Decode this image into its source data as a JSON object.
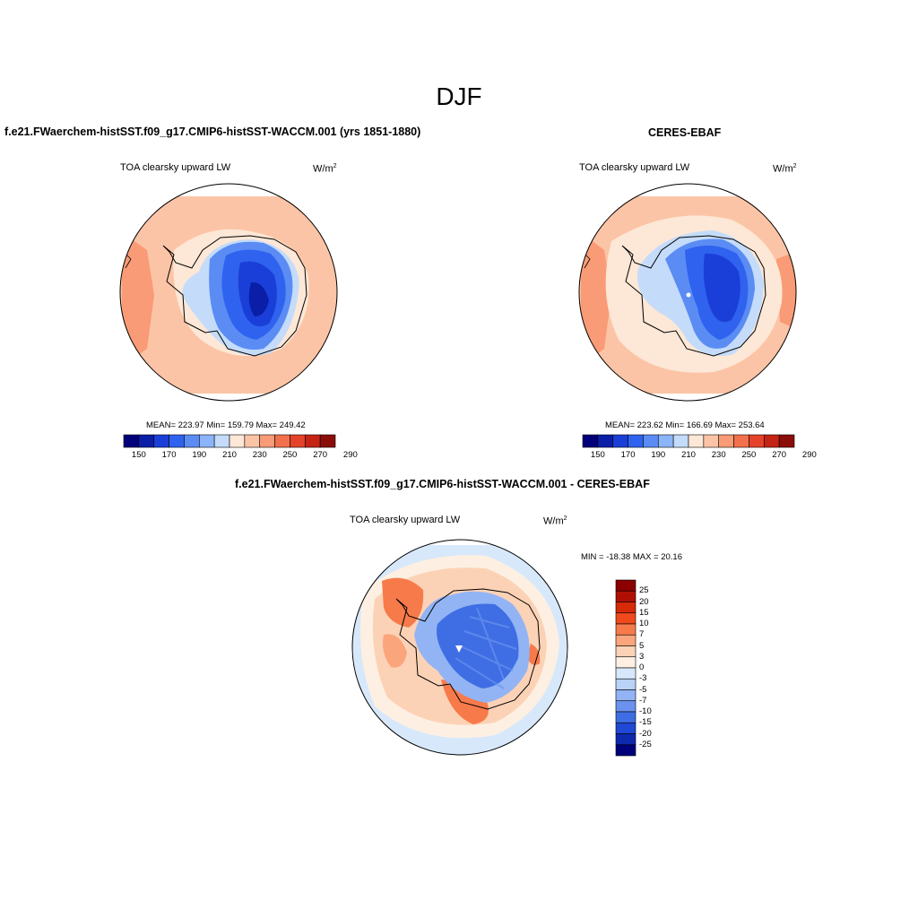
{
  "season": "DJF",
  "panels": [
    {
      "title": "f.e21.FWaerchem-histSST.f09_g17.CMIP6-histSST-WACCM.001 (yrs 1851-1880)",
      "left_label": "TOA clearsky upward LW",
      "units_base": "W/m",
      "units_exp": "2",
      "stats": "MEAN= 223.97  Min= 159.79  Max= 249.42",
      "colorbar": {
        "colors": [
          "#00007a",
          "#0a1ea8",
          "#1a3fd8",
          "#2f62ee",
          "#5a8cf4",
          "#8cb4f8",
          "#c4dcfa",
          "#fde7d6",
          "#fcc4a6",
          "#f99b76",
          "#f2704c",
          "#e4432a",
          "#c42414",
          "#8b0d08"
        ],
        "tick_labels": [
          "150",
          "170",
          "190",
          "210",
          "230",
          "250",
          "270",
          "290"
        ]
      }
    },
    {
      "title": "CERES-EBAF",
      "left_label": "TOA clearsky upward LW",
      "units_base": "W/m",
      "units_exp": "2",
      "stats": "MEAN= 223.62  Min= 166.69  Max= 253.64",
      "colorbar": {
        "colors": [
          "#00007a",
          "#0a1ea8",
          "#1a3fd8",
          "#2f62ee",
          "#5a8cf4",
          "#8cb4f8",
          "#c4dcfa",
          "#fde7d6",
          "#fcc4a6",
          "#f99b76",
          "#f2704c",
          "#e4432a",
          "#c42414",
          "#8b0d08"
        ],
        "tick_labels": [
          "150",
          "170",
          "190",
          "210",
          "230",
          "250",
          "270",
          "290"
        ]
      }
    },
    {
      "title": "f.e21.FWaerchem-histSST.f09_g17.CMIP6-histSST-WACCM.001 - CERES-EBAF",
      "left_label": "TOA clearsky upward LW",
      "units_base": "W/m",
      "units_exp": "2",
      "stats": "MIN = -18.38 MAX =  20.16",
      "colorbar": {
        "colors": [
          "#8b0000",
          "#b01004",
          "#d62a08",
          "#ee4a1c",
          "#f77a4a",
          "#fba57c",
          "#fcd2b6",
          "#fdf0e2",
          "#d8e8fb",
          "#b8d2f8",
          "#92b4f4",
          "#6a92ee",
          "#3f6ee4",
          "#1f48d4",
          "#0e28ae",
          "#00007a"
        ],
        "tick_labels": [
          "25",
          "20",
          "15",
          "10",
          "7",
          "5",
          "3",
          "0",
          "-3",
          "-5",
          "-7",
          "-10",
          "-15",
          "-20",
          "-25"
        ]
      }
    }
  ]
}
